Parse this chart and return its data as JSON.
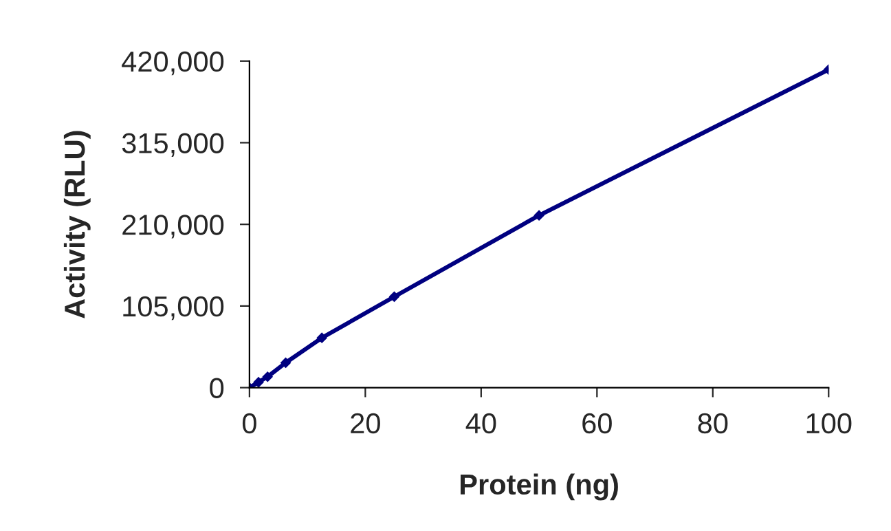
{
  "chart_data": {
    "type": "line",
    "xlabel": "Protein (ng)",
    "ylabel": "Activity (RLU)",
    "x": [
      0,
      1.56,
      3.125,
      6.25,
      12.5,
      25,
      50,
      100
    ],
    "series": [
      {
        "color": "#000080",
        "values": [
          0,
          7000,
          14000,
          32000,
          64000,
          117000,
          221500,
          409000
        ]
      }
    ],
    "xlim": [
      0,
      100
    ],
    "xticks": [
      0,
      20,
      40,
      60,
      80,
      100
    ],
    "ylim": [
      0,
      420000
    ],
    "yticks": [
      {
        "value": 0,
        "label": "0"
      },
      {
        "value": 105000,
        "label": "105,000"
      },
      {
        "value": 210000,
        "label": "210,000"
      },
      {
        "value": 315000,
        "label": "315,000"
      },
      {
        "value": 420000,
        "label": "420,000"
      }
    ],
    "grid": false,
    "marker": "diamond",
    "line_style": "solid"
  }
}
